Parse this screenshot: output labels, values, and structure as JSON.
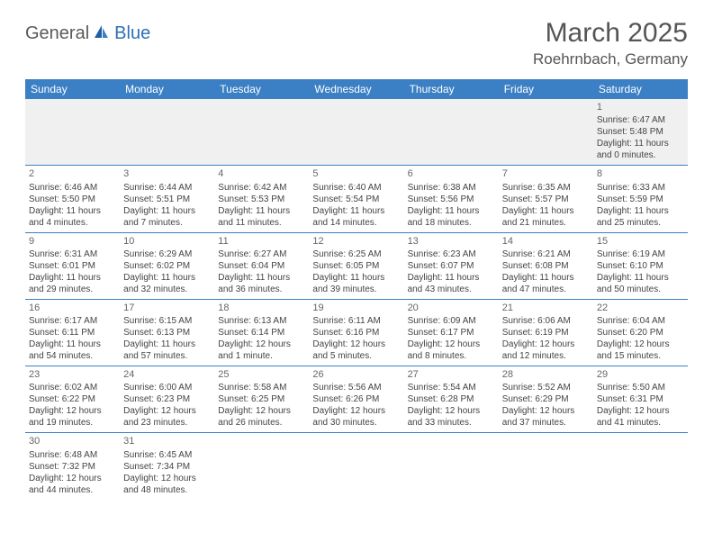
{
  "brand": {
    "part1": "General",
    "part2": "Blue"
  },
  "title": "March 2025",
  "location": "Roehrnbach, Germany",
  "colors": {
    "header_bg": "#3b7fc4",
    "header_fg": "#ffffff",
    "grid_line": "#3b7fc4",
    "muted_bg": "#f0f0f0",
    "text": "#444444",
    "title_text": "#555555"
  },
  "weekdays": [
    "Sunday",
    "Monday",
    "Tuesday",
    "Wednesday",
    "Thursday",
    "Friday",
    "Saturday"
  ],
  "weeks": [
    [
      null,
      null,
      null,
      null,
      null,
      null,
      {
        "d": "1",
        "sr": "Sunrise: 6:47 AM",
        "ss": "Sunset: 5:48 PM",
        "dl1": "Daylight: 11 hours",
        "dl2": "and 0 minutes."
      }
    ],
    [
      {
        "d": "2",
        "sr": "Sunrise: 6:46 AM",
        "ss": "Sunset: 5:50 PM",
        "dl1": "Daylight: 11 hours",
        "dl2": "and 4 minutes."
      },
      {
        "d": "3",
        "sr": "Sunrise: 6:44 AM",
        "ss": "Sunset: 5:51 PM",
        "dl1": "Daylight: 11 hours",
        "dl2": "and 7 minutes."
      },
      {
        "d": "4",
        "sr": "Sunrise: 6:42 AM",
        "ss": "Sunset: 5:53 PM",
        "dl1": "Daylight: 11 hours",
        "dl2": "and 11 minutes."
      },
      {
        "d": "5",
        "sr": "Sunrise: 6:40 AM",
        "ss": "Sunset: 5:54 PM",
        "dl1": "Daylight: 11 hours",
        "dl2": "and 14 minutes."
      },
      {
        "d": "6",
        "sr": "Sunrise: 6:38 AM",
        "ss": "Sunset: 5:56 PM",
        "dl1": "Daylight: 11 hours",
        "dl2": "and 18 minutes."
      },
      {
        "d": "7",
        "sr": "Sunrise: 6:35 AM",
        "ss": "Sunset: 5:57 PM",
        "dl1": "Daylight: 11 hours",
        "dl2": "and 21 minutes."
      },
      {
        "d": "8",
        "sr": "Sunrise: 6:33 AM",
        "ss": "Sunset: 5:59 PM",
        "dl1": "Daylight: 11 hours",
        "dl2": "and 25 minutes."
      }
    ],
    [
      {
        "d": "9",
        "sr": "Sunrise: 6:31 AM",
        "ss": "Sunset: 6:01 PM",
        "dl1": "Daylight: 11 hours",
        "dl2": "and 29 minutes."
      },
      {
        "d": "10",
        "sr": "Sunrise: 6:29 AM",
        "ss": "Sunset: 6:02 PM",
        "dl1": "Daylight: 11 hours",
        "dl2": "and 32 minutes."
      },
      {
        "d": "11",
        "sr": "Sunrise: 6:27 AM",
        "ss": "Sunset: 6:04 PM",
        "dl1": "Daylight: 11 hours",
        "dl2": "and 36 minutes."
      },
      {
        "d": "12",
        "sr": "Sunrise: 6:25 AM",
        "ss": "Sunset: 6:05 PM",
        "dl1": "Daylight: 11 hours",
        "dl2": "and 39 minutes."
      },
      {
        "d": "13",
        "sr": "Sunrise: 6:23 AM",
        "ss": "Sunset: 6:07 PM",
        "dl1": "Daylight: 11 hours",
        "dl2": "and 43 minutes."
      },
      {
        "d": "14",
        "sr": "Sunrise: 6:21 AM",
        "ss": "Sunset: 6:08 PM",
        "dl1": "Daylight: 11 hours",
        "dl2": "and 47 minutes."
      },
      {
        "d": "15",
        "sr": "Sunrise: 6:19 AM",
        "ss": "Sunset: 6:10 PM",
        "dl1": "Daylight: 11 hours",
        "dl2": "and 50 minutes."
      }
    ],
    [
      {
        "d": "16",
        "sr": "Sunrise: 6:17 AM",
        "ss": "Sunset: 6:11 PM",
        "dl1": "Daylight: 11 hours",
        "dl2": "and 54 minutes."
      },
      {
        "d": "17",
        "sr": "Sunrise: 6:15 AM",
        "ss": "Sunset: 6:13 PM",
        "dl1": "Daylight: 11 hours",
        "dl2": "and 57 minutes."
      },
      {
        "d": "18",
        "sr": "Sunrise: 6:13 AM",
        "ss": "Sunset: 6:14 PM",
        "dl1": "Daylight: 12 hours",
        "dl2": "and 1 minute."
      },
      {
        "d": "19",
        "sr": "Sunrise: 6:11 AM",
        "ss": "Sunset: 6:16 PM",
        "dl1": "Daylight: 12 hours",
        "dl2": "and 5 minutes."
      },
      {
        "d": "20",
        "sr": "Sunrise: 6:09 AM",
        "ss": "Sunset: 6:17 PM",
        "dl1": "Daylight: 12 hours",
        "dl2": "and 8 minutes."
      },
      {
        "d": "21",
        "sr": "Sunrise: 6:06 AM",
        "ss": "Sunset: 6:19 PM",
        "dl1": "Daylight: 12 hours",
        "dl2": "and 12 minutes."
      },
      {
        "d": "22",
        "sr": "Sunrise: 6:04 AM",
        "ss": "Sunset: 6:20 PM",
        "dl1": "Daylight: 12 hours",
        "dl2": "and 15 minutes."
      }
    ],
    [
      {
        "d": "23",
        "sr": "Sunrise: 6:02 AM",
        "ss": "Sunset: 6:22 PM",
        "dl1": "Daylight: 12 hours",
        "dl2": "and 19 minutes."
      },
      {
        "d": "24",
        "sr": "Sunrise: 6:00 AM",
        "ss": "Sunset: 6:23 PM",
        "dl1": "Daylight: 12 hours",
        "dl2": "and 23 minutes."
      },
      {
        "d": "25",
        "sr": "Sunrise: 5:58 AM",
        "ss": "Sunset: 6:25 PM",
        "dl1": "Daylight: 12 hours",
        "dl2": "and 26 minutes."
      },
      {
        "d": "26",
        "sr": "Sunrise: 5:56 AM",
        "ss": "Sunset: 6:26 PM",
        "dl1": "Daylight: 12 hours",
        "dl2": "and 30 minutes."
      },
      {
        "d": "27",
        "sr": "Sunrise: 5:54 AM",
        "ss": "Sunset: 6:28 PM",
        "dl1": "Daylight: 12 hours",
        "dl2": "and 33 minutes."
      },
      {
        "d": "28",
        "sr": "Sunrise: 5:52 AM",
        "ss": "Sunset: 6:29 PM",
        "dl1": "Daylight: 12 hours",
        "dl2": "and 37 minutes."
      },
      {
        "d": "29",
        "sr": "Sunrise: 5:50 AM",
        "ss": "Sunset: 6:31 PM",
        "dl1": "Daylight: 12 hours",
        "dl2": "and 41 minutes."
      }
    ],
    [
      {
        "d": "30",
        "sr": "Sunrise: 6:48 AM",
        "ss": "Sunset: 7:32 PM",
        "dl1": "Daylight: 12 hours",
        "dl2": "and 44 minutes."
      },
      {
        "d": "31",
        "sr": "Sunrise: 6:45 AM",
        "ss": "Sunset: 7:34 PM",
        "dl1": "Daylight: 12 hours",
        "dl2": "and 48 minutes."
      },
      null,
      null,
      null,
      null,
      null
    ]
  ]
}
